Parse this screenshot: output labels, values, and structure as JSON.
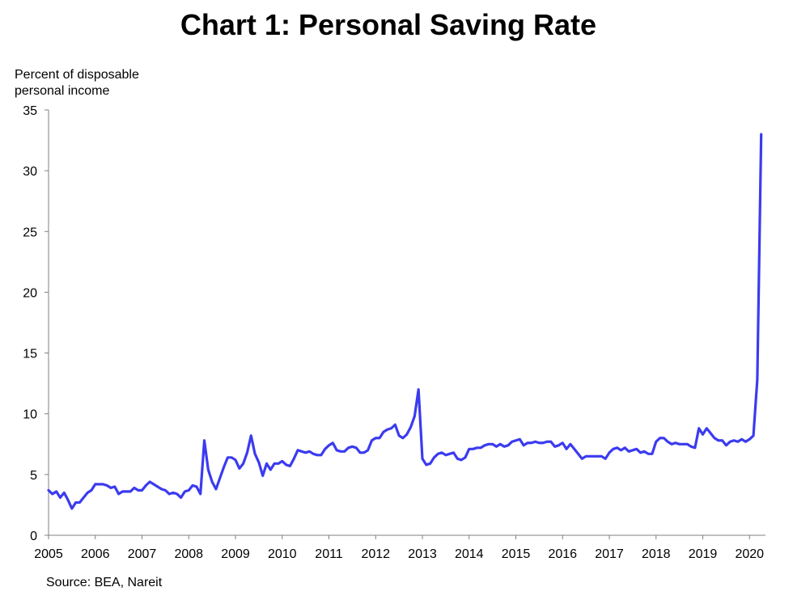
{
  "chart_data": {
    "type": "line",
    "title": "Chart 1: Personal Saving Rate",
    "ylabel_lines": [
      "Percent of disposable",
      "personal income"
    ],
    "xlabel": "",
    "source": "Source: BEA, Nareit",
    "ylim": [
      0,
      35
    ],
    "yticks": [
      0,
      5,
      10,
      15,
      20,
      25,
      30,
      35
    ],
    "xlim": [
      "2005-01",
      "2020-04"
    ],
    "xticks": [
      "2005",
      "2006",
      "2007",
      "2008",
      "2009",
      "2010",
      "2011",
      "2012",
      "2013",
      "2014",
      "2015",
      "2016",
      "2017",
      "2018",
      "2019",
      "2020"
    ],
    "grid": false,
    "legend": "none",
    "colors": {
      "line": "#3b3bf0",
      "axis": "#808080"
    },
    "series": [
      {
        "x": [
          "2005-01",
          "2005-02",
          "2005-03",
          "2005-04",
          "2005-05",
          "2005-06",
          "2005-07",
          "2005-08",
          "2005-09",
          "2005-10",
          "2005-11",
          "2005-12",
          "2006-01",
          "2006-02",
          "2006-03",
          "2006-04",
          "2006-05",
          "2006-06",
          "2006-07",
          "2006-08",
          "2006-09",
          "2006-10",
          "2006-11",
          "2006-12",
          "2007-01",
          "2007-02",
          "2007-03",
          "2007-04",
          "2007-05",
          "2007-06",
          "2007-07",
          "2007-08",
          "2007-09",
          "2007-10",
          "2007-11",
          "2007-12",
          "2008-01",
          "2008-02",
          "2008-03",
          "2008-04",
          "2008-05",
          "2008-06",
          "2008-07",
          "2008-08",
          "2008-09",
          "2008-10",
          "2008-11",
          "2008-12",
          "2009-01",
          "2009-02",
          "2009-03",
          "2009-04",
          "2009-05",
          "2009-06",
          "2009-07",
          "2009-08",
          "2009-09",
          "2009-10",
          "2009-11",
          "2009-12",
          "2010-01",
          "2010-02",
          "2010-03",
          "2010-04",
          "2010-05",
          "2010-06",
          "2010-07",
          "2010-08",
          "2010-09",
          "2010-10",
          "2010-11",
          "2010-12",
          "2011-01",
          "2011-02",
          "2011-03",
          "2011-04",
          "2011-05",
          "2011-06",
          "2011-07",
          "2011-08",
          "2011-09",
          "2011-10",
          "2011-11",
          "2011-12",
          "2012-01",
          "2012-02",
          "2012-03",
          "2012-04",
          "2012-05",
          "2012-06",
          "2012-07",
          "2012-08",
          "2012-09",
          "2012-10",
          "2012-11",
          "2012-12",
          "2013-01",
          "2013-02",
          "2013-03",
          "2013-04",
          "2013-05",
          "2013-06",
          "2013-07",
          "2013-08",
          "2013-09",
          "2013-10",
          "2013-11",
          "2013-12",
          "2014-01",
          "2014-02",
          "2014-03",
          "2014-04",
          "2014-05",
          "2014-06",
          "2014-07",
          "2014-08",
          "2014-09",
          "2014-10",
          "2014-11",
          "2014-12",
          "2015-01",
          "2015-02",
          "2015-03",
          "2015-04",
          "2015-05",
          "2015-06",
          "2015-07",
          "2015-08",
          "2015-09",
          "2015-10",
          "2015-11",
          "2015-12",
          "2016-01",
          "2016-02",
          "2016-03",
          "2016-04",
          "2016-05",
          "2016-06",
          "2016-07",
          "2016-08",
          "2016-09",
          "2016-10",
          "2016-11",
          "2016-12",
          "2017-01",
          "2017-02",
          "2017-03",
          "2017-04",
          "2017-05",
          "2017-06",
          "2017-07",
          "2017-08",
          "2017-09",
          "2017-10",
          "2017-11",
          "2017-12",
          "2018-01",
          "2018-02",
          "2018-03",
          "2018-04",
          "2018-05",
          "2018-06",
          "2018-07",
          "2018-08",
          "2018-09",
          "2018-10",
          "2018-11",
          "2018-12",
          "2019-01",
          "2019-02",
          "2019-03",
          "2019-04",
          "2019-05",
          "2019-06",
          "2019-07",
          "2019-08",
          "2019-09",
          "2019-10",
          "2019-11",
          "2019-12",
          "2020-01",
          "2020-02",
          "2020-03",
          "2020-04"
        ],
        "values": [
          3.7,
          3.4,
          3.6,
          3.1,
          3.5,
          2.9,
          2.2,
          2.7,
          2.7,
          3.1,
          3.5,
          3.7,
          4.2,
          4.2,
          4.2,
          4.1,
          3.9,
          4.0,
          3.4,
          3.6,
          3.6,
          3.6,
          3.9,
          3.7,
          3.7,
          4.1,
          4.4,
          4.2,
          4.0,
          3.8,
          3.7,
          3.4,
          3.5,
          3.4,
          3.1,
          3.6,
          3.7,
          4.1,
          4.0,
          3.4,
          7.8,
          5.4,
          4.4,
          3.8,
          4.7,
          5.6,
          6.4,
          6.4,
          6.2,
          5.5,
          5.9,
          6.8,
          8.2,
          6.7,
          6.0,
          4.9,
          5.9,
          5.4,
          5.9,
          5.9,
          6.1,
          5.8,
          5.7,
          6.3,
          7.0,
          6.9,
          6.8,
          6.9,
          6.7,
          6.6,
          6.6,
          7.1,
          7.4,
          7.6,
          7.0,
          6.9,
          6.9,
          7.2,
          7.3,
          7.2,
          6.8,
          6.8,
          7.0,
          7.8,
          8.0,
          8.0,
          8.5,
          8.7,
          8.8,
          9.1,
          8.2,
          8.0,
          8.3,
          8.9,
          9.8,
          12.0,
          6.3,
          5.8,
          5.9,
          6.4,
          6.7,
          6.8,
          6.6,
          6.7,
          6.8,
          6.3,
          6.2,
          6.4,
          7.1,
          7.1,
          7.2,
          7.2,
          7.4,
          7.5,
          7.5,
          7.3,
          7.5,
          7.3,
          7.4,
          7.7,
          7.8,
          7.9,
          7.4,
          7.6,
          7.6,
          7.7,
          7.6,
          7.6,
          7.7,
          7.7,
          7.3,
          7.4,
          7.6,
          7.1,
          7.5,
          7.1,
          6.7,
          6.3,
          6.5,
          6.5,
          6.5,
          6.5,
          6.5,
          6.3,
          6.8,
          7.1,
          7.2,
          7.0,
          7.2,
          6.9,
          7.0,
          7.1,
          6.8,
          6.9,
          6.7,
          6.7,
          7.7,
          8.0,
          8.0,
          7.7,
          7.5,
          7.6,
          7.5,
          7.5,
          7.5,
          7.3,
          7.2,
          8.8,
          8.3,
          8.8,
          8.4,
          8.0,
          7.8,
          7.8,
          7.4,
          7.7,
          7.8,
          7.7,
          7.9,
          7.7,
          7.9,
          8.2,
          12.8,
          33.0
        ]
      }
    ]
  }
}
